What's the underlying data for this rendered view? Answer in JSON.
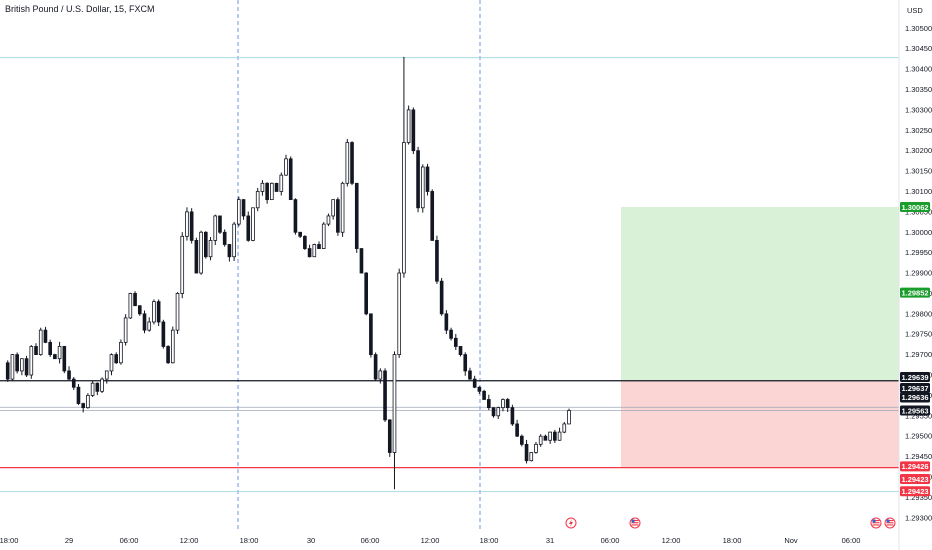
{
  "header": {
    "symbol_title": "British Pound / U.S. Dollar, 15, FXCM",
    "currency": "USD"
  },
  "colors": {
    "up": "#ffffff",
    "down": "#131722",
    "grid_dash": "#6f96ea",
    "profit_zone": "#d9f1d6",
    "loss_zone": "#fbd4d4",
    "target_tag": "#1a9d2a",
    "stop_tag": "#f23645",
    "last_tag": "#131722"
  },
  "chart_data": {
    "type": "candlestick",
    "symbol": "British Pound / U.S. Dollar, 15, FXCM",
    "y_ticks": [
      "1.30500",
      "1.30450",
      "1.30400",
      "1.30350",
      "1.30300",
      "1.30250",
      "1.30200",
      "1.30150",
      "1.30100",
      "1.30050",
      "1.30000",
      "1.29950",
      "1.29900",
      "1.29850",
      "1.29800",
      "1.29750",
      "1.29700",
      "1.29650",
      "1.29600",
      "1.29550",
      "1.29500",
      "1.29450",
      "1.29400",
      "1.29350",
      "1.29300"
    ],
    "y_range": [
      1.2927,
      1.3054
    ],
    "x_labels": [
      "18:00",
      "29",
      "06:00",
      "12:00",
      "18:00",
      "30",
      "06:00",
      "12:00",
      "18:00",
      "31",
      "06:00",
      "12:00",
      "18:00",
      "Nov",
      "06:00"
    ],
    "session_breaks": [
      "18:00",
      "18:00"
    ],
    "price_series": [
      1.2968,
      1.2964,
      1.297,
      1.2966,
      1.2969,
      1.2965,
      1.2972,
      1.297,
      1.2976,
      1.2973,
      1.297,
      1.2969,
      1.2972,
      1.2966,
      1.2964,
      1.2962,
      1.2958,
      1.2957,
      1.296,
      1.2963,
      1.2961,
      1.2964,
      1.2966,
      1.297,
      1.2968,
      1.2973,
      1.2979,
      1.2985,
      1.2982,
      1.298,
      1.2976,
      1.2978,
      1.2983,
      1.2978,
      1.2972,
      1.2968,
      1.2976,
      1.2985,
      1.2999,
      1.3005,
      1.2998,
      1.299,
      1.3,
      1.2994,
      1.2998,
      1.3004,
      1.3,
      1.2997,
      1.2994,
      1.3002,
      1.3008,
      1.3004,
      1.2998,
      1.3006,
      1.301,
      1.3012,
      1.3008,
      1.3012,
      1.301,
      1.3014,
      1.3018,
      1.3008,
      1.3,
      1.2999,
      1.2996,
      1.2994,
      1.2997,
      1.2996,
      1.3002,
      1.3004,
      1.3008,
      1.3,
      1.3012,
      1.3022,
      1.3012,
      1.2996,
      1.299,
      1.298,
      1.297,
      1.2964,
      1.2966,
      1.2954,
      1.2946,
      1.297,
      1.299,
      1.3022,
      1.303,
      1.302,
      1.3006,
      1.3016,
      1.301,
      1.2998,
      1.2988,
      1.298,
      1.2976,
      1.2974,
      1.2972,
      1.297,
      1.2966,
      1.2964,
      1.2962,
      1.2961,
      1.2959,
      1.2957,
      1.2955,
      1.2957,
      1.2959,
      1.2957,
      1.2953,
      1.295,
      1.2948,
      1.2944,
      1.2946,
      1.2948,
      1.295,
      1.2949,
      1.2951,
      1.2949,
      1.2951,
      1.2953,
      1.29563
    ],
    "wick_extremes": {
      "spike_high": 1.3043,
      "spike_low": 1.2937,
      "session_low": 1.29423
    },
    "horizontal_lines": [
      {
        "name": "resistance",
        "value": 1.29636,
        "color": "#131722"
      },
      {
        "name": "stop",
        "value": 1.29423,
        "color": "#f23645"
      },
      {
        "name": "last-upper",
        "value": 1.29571,
        "color": "#9fa8b8"
      },
      {
        "name": "last-lower",
        "value": 1.29563,
        "color": "#9fa8b8"
      },
      {
        "name": "top-guide",
        "value": 1.30428,
        "color": "#9fd3e0"
      },
      {
        "name": "bottom-guide",
        "value": 1.29364,
        "color": "#9fd3e0"
      }
    ],
    "position": {
      "entry": 1.29636,
      "target": 1.30062,
      "stop": 1.29423
    },
    "price_tags": [
      {
        "label": "1.30062",
        "value": 1.30062,
        "kind": "target"
      },
      {
        "label": "1.29852",
        "value": 1.29852,
        "kind": "target"
      },
      {
        "label": "1.29639",
        "value": 1.29645,
        "kind": "last"
      },
      {
        "label": "1.29637",
        "value": 1.29618,
        "kind": "last"
      },
      {
        "label": "1.29636",
        "value": 1.29595,
        "kind": "last"
      },
      {
        "label": "1.29563",
        "value": 1.29563,
        "kind": "last"
      },
      {
        "label": "1.29426",
        "value": 1.29426,
        "kind": "stop"
      },
      {
        "label": "1.29423",
        "value": 1.29395,
        "kind": "stop"
      },
      {
        "label": "1.29423",
        "value": 1.29365,
        "kind": "stop"
      }
    ],
    "event_icons": [
      {
        "name": "lightning-event-icon",
        "at": "31+"
      },
      {
        "name": "us-flag-event-icon",
        "at": "06:00"
      },
      {
        "name": "us-flag-event-icon",
        "at": "Nov+"
      },
      {
        "name": "us-flag-event-icon",
        "at": "Nov++"
      }
    ]
  }
}
